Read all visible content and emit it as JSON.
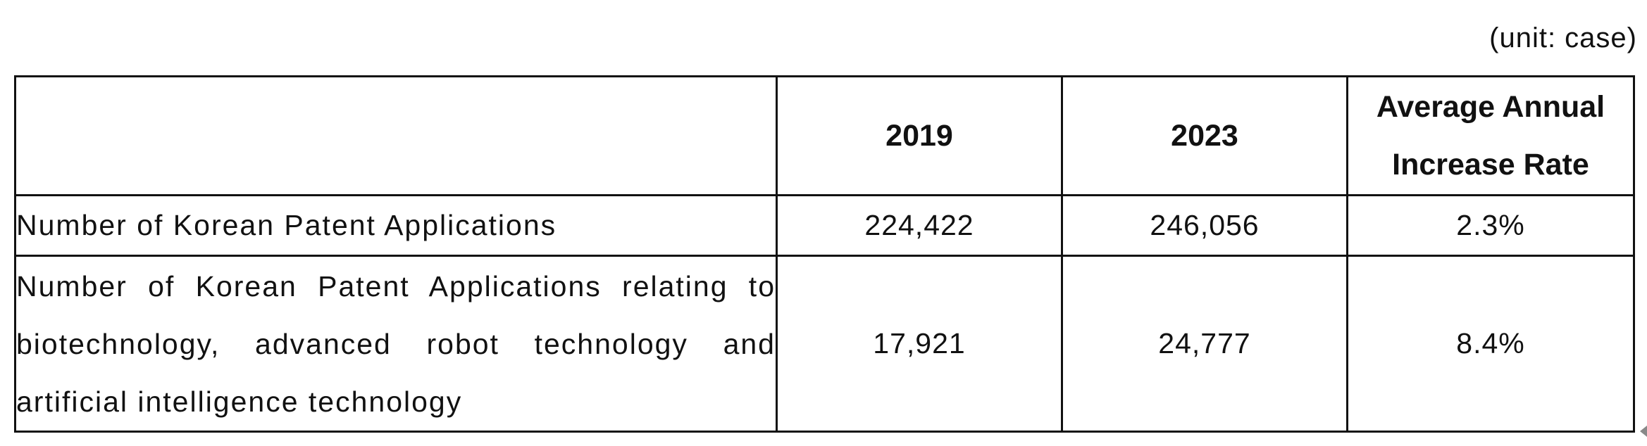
{
  "unit_note": "(unit: case)",
  "table": {
    "headers": [
      "",
      "2019",
      "2023",
      "Average Annual Increase Rate"
    ],
    "rows": [
      {
        "label": "Number of Korean Patent Applications",
        "v2019": "224,422",
        "v2023": "246,056",
        "rate": "2.3%"
      },
      {
        "label": "Number of Korean Patent Applications relating to biotechnology, advanced robot technology and artificial intelligence technology",
        "v2019": "17,921",
        "v2023": "24,777",
        "rate": "8.4%"
      }
    ]
  }
}
